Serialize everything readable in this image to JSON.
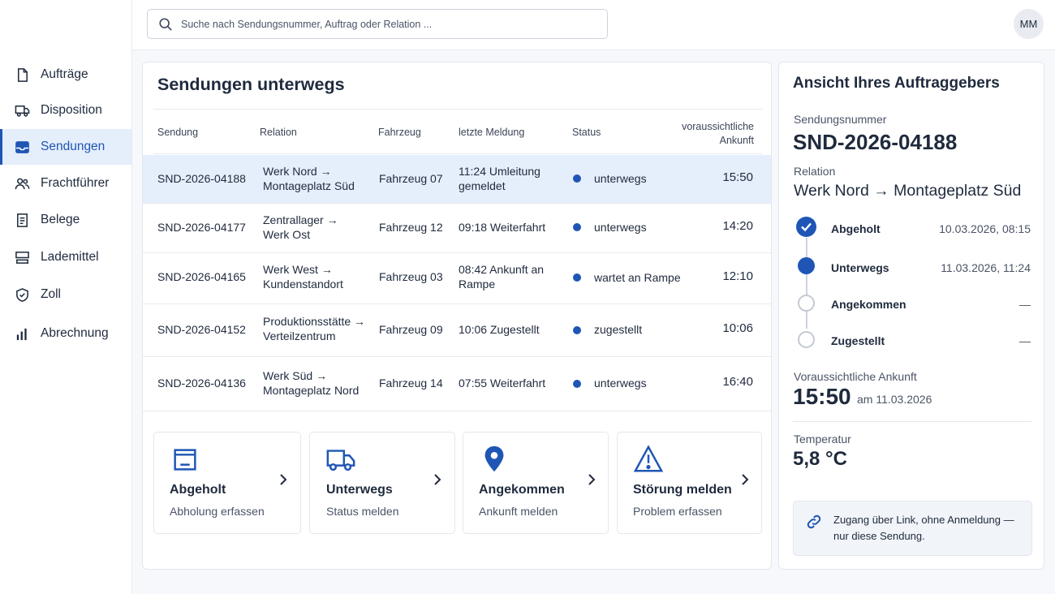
{
  "search": {
    "placeholder": "Suche nach Sendungsnummer, Auftrag oder Relation ..."
  },
  "user": {
    "initials": "MM"
  },
  "sidebar": {
    "items": [
      {
        "label": "Aufträge",
        "icon": "document-icon"
      },
      {
        "label": "Disposition",
        "icon": "truck-icon"
      },
      {
        "label": "Sendungen",
        "icon": "inbox-icon",
        "active": true
      },
      {
        "label": "Frachtführer",
        "icon": "users-icon"
      },
      {
        "label": "Belege",
        "icon": "receipt-icon"
      },
      {
        "label": "Lademittel",
        "icon": "pallet-icon"
      },
      {
        "label": "Zoll",
        "icon": "shield-icon"
      },
      {
        "label": "Abrechnung",
        "icon": "bar-chart-icon"
      }
    ]
  },
  "main": {
    "title": "Sendungen unterwegs",
    "columns": {
      "sendung": "Sendung",
      "relation": "Relation",
      "fahrzeug": "Fahrzeug",
      "meldung": "letzte Meldung",
      "status": "Status",
      "ankunft_1": "voraussichtliche",
      "ankunft_2": "Ankunft"
    },
    "rows": [
      {
        "id": "SND-2026-04188",
        "rel1": "Werk Nord →",
        "rel2": "Montageplatz Süd",
        "vehicle": "Fahrzeug 07",
        "msg1": "11:24 Umleitung",
        "msg2": "gemeldet",
        "status": "unterwegs",
        "eta": "15:50"
      },
      {
        "id": "SND-2026-04177",
        "rel1": "Zentrallager →",
        "rel2": "Werk Ost",
        "vehicle": "Fahrzeug 12",
        "msg1": "09:18 Weiterfahrt",
        "msg2": "",
        "status": "unterwegs",
        "eta": "14:20"
      },
      {
        "id": "SND-2026-04165",
        "rel1": "Werk West →",
        "rel2": "Kundenstandort",
        "vehicle": "Fahrzeug 03",
        "msg1": "08:42 Ankunft an",
        "msg2": "Rampe",
        "status": "wartet an Rampe",
        "eta": "12:10"
      },
      {
        "id": "SND-2026-04152",
        "rel1": "Produktionsstätte →",
        "rel2": "Verteilzentrum",
        "vehicle": "Fahrzeug 09",
        "msg1": "10:06 Zugestellt",
        "msg2": "",
        "status": "zugestellt",
        "eta": "10:06"
      },
      {
        "id": "SND-2026-04136",
        "rel1": "Werk Süd →",
        "rel2": "Montageplatz Nord",
        "vehicle": "Fahrzeug 14",
        "msg1": "07:55 Weiterfahrt",
        "msg2": "",
        "status": "unterwegs",
        "eta": "16:40"
      }
    ],
    "actions": [
      {
        "title": "Abgeholt",
        "subtitle": "Abholung erfassen",
        "icon": "box-icon"
      },
      {
        "title": "Unterwegs",
        "subtitle": "Status melden",
        "icon": "truck-icon"
      },
      {
        "title": "Angekommen",
        "subtitle": "Ankunft melden",
        "icon": "location-pin-icon"
      },
      {
        "title": "Störung melden",
        "subtitle": "Problem erfassen",
        "icon": "warning-icon"
      }
    ]
  },
  "detail": {
    "title": "Ansicht Ihres Auftraggebers",
    "shipment_label": "Sendungsnummer",
    "shipment_id": "SND-2026-04188",
    "relation_label": "Relation",
    "relation_value": "Werk Nord → Montageplatz Süd",
    "timeline": [
      {
        "name": "Abgeholt",
        "time": "10.03.2026, 08:15",
        "state": "done"
      },
      {
        "name": "Unterwegs",
        "time": "11.03.2026, 11:24",
        "state": "current"
      },
      {
        "name": "Angekommen",
        "time": "—",
        "state": "pending"
      },
      {
        "name": "Zugestellt",
        "time": "—",
        "state": "pending"
      }
    ],
    "eta_label": "Voraussichtliche Ankunft",
    "eta_time": "15:50",
    "eta_date": "am 11.03.2026",
    "temp_label": "Temperatur",
    "temp_value": "5,8 °C",
    "note": "Zugang über Link, ohne Anmeldung — nur diese Sendung."
  },
  "colors": {
    "accent": "#1f56b5",
    "selected_row": "#e5eefb",
    "text": "#1f2a3d"
  }
}
